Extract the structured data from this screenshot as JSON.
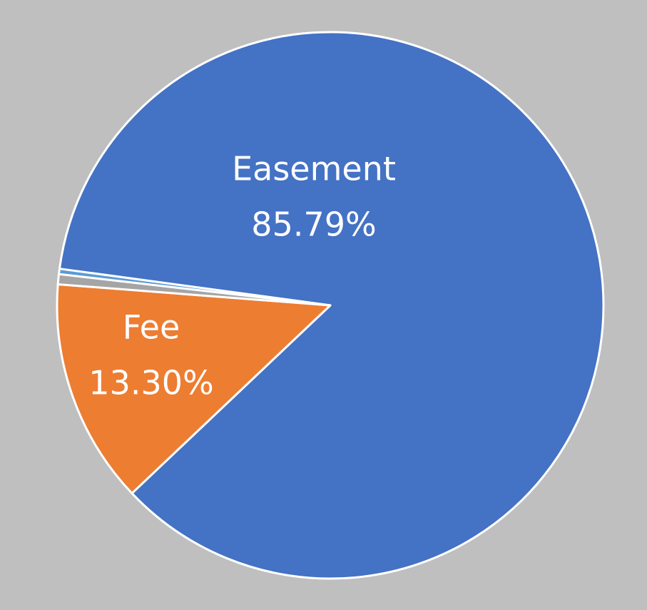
{
  "chart_data": {
    "type": "pie",
    "categories": [
      "Easement",
      "Fee",
      null,
      null
    ],
    "values": [
      85.79,
      13.3,
      0.6,
      0.31
    ],
    "value_labels": [
      "85.79%",
      "13.30%",
      null,
      null
    ],
    "colors": [
      "#4472c4",
      "#ed7d31",
      "#a5a5a5",
      "#5b9bd5"
    ]
  }
}
